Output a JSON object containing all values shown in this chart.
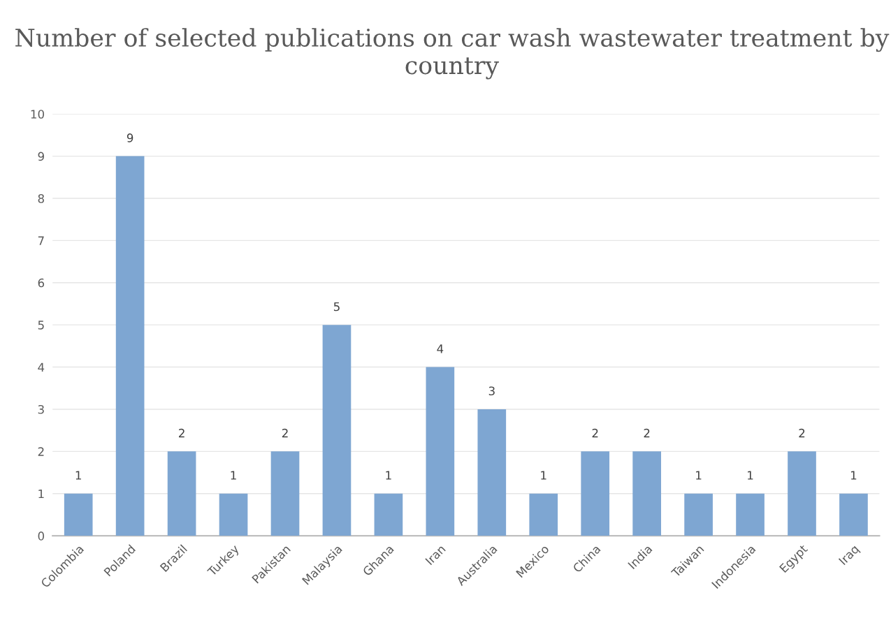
{
  "chart_data": {
    "type": "bar",
    "title": "Number of selected publications on car wash wastewater treatment by country",
    "categories": [
      "Colombia",
      "Poland",
      "Brazil",
      "Turkey",
      "Pakistan",
      "Malaysia",
      "Ghana",
      "Iran",
      "Australia",
      "Mexico",
      "China",
      "India",
      "Taiwan",
      "Indonesia",
      "Egypt",
      "Iraq"
    ],
    "values": [
      1,
      9,
      2,
      1,
      2,
      5,
      1,
      4,
      3,
      1,
      2,
      2,
      1,
      1,
      2,
      1
    ],
    "color": "#7ea6d2",
    "ylim": [
      0,
      10
    ],
    "yticks": [
      0,
      1,
      2,
      3,
      4,
      5,
      6,
      7,
      8,
      9,
      10
    ],
    "grid": "y",
    "data_labels": true
  }
}
